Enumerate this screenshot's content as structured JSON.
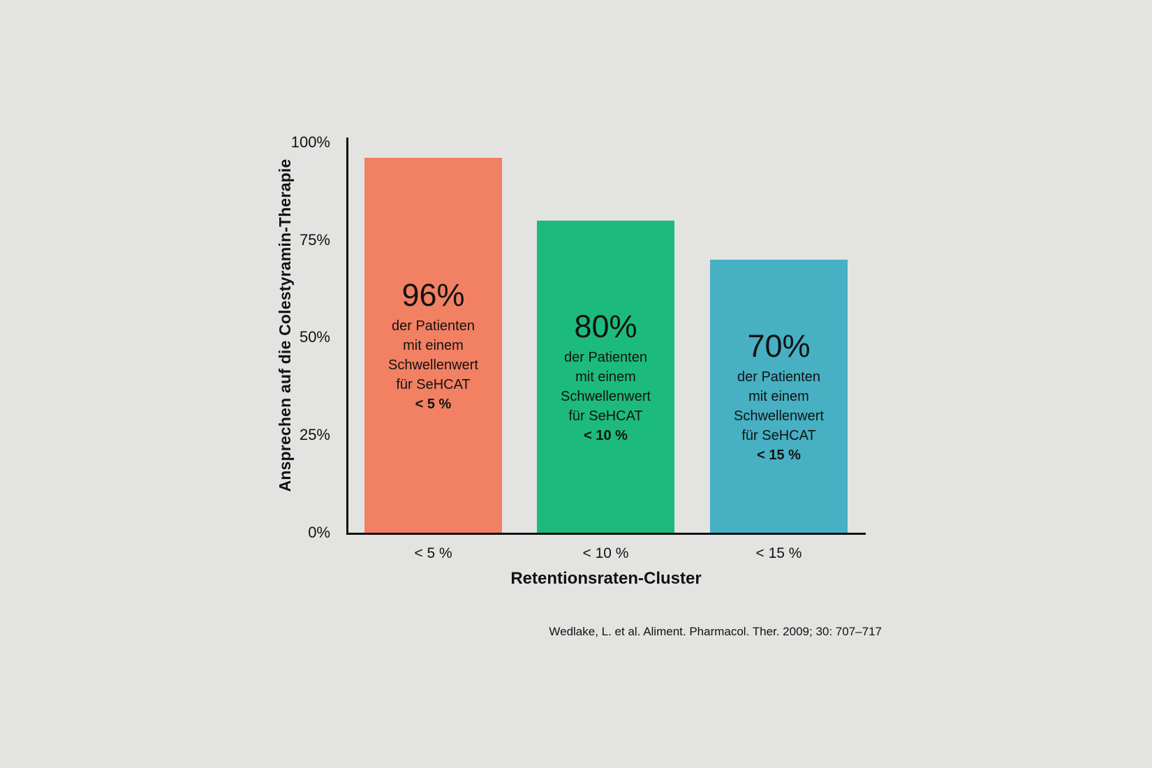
{
  "page": {
    "background": "#E3E3E1",
    "text_color": "#121212"
  },
  "chart_data": {
    "type": "bar",
    "title": "",
    "categories": [
      "< 5 %",
      "< 10 %",
      "< 15 %"
    ],
    "values": [
      96,
      80,
      70
    ],
    "ylim": [
      0,
      100
    ],
    "ytick_labels": [
      "100%",
      "75%",
      "50%",
      "25%",
      "0%"
    ],
    "ylabel": "Ansprechen auf die Colestyramin-Therapie",
    "xlabel": "Retentionsraten-Cluster",
    "grid": false,
    "legend": false,
    "bars": [
      {
        "category": "< 5 %",
        "value": 96,
        "color": "#F28063",
        "pct_label": "96%",
        "body_text": "der Patienten\nmit einem\nSchwellenwert\nfür SeHCAT",
        "threshold_label": "< 5 %"
      },
      {
        "category": "< 10 %",
        "value": 80,
        "color": "#1CBB7D",
        "pct_label": "80%",
        "body_text": "der Patienten\nmit einem\nSchwellenwert\nfür SeHCAT",
        "threshold_label": "< 10 %"
      },
      {
        "category": "< 15 %",
        "value": 70,
        "color": "#47B0C3",
        "pct_label": "70%",
        "body_text": "der Patienten\nmit einem\nSchwellenwert\nfür SeHCAT",
        "threshold_label": "< 15 %"
      }
    ],
    "source": "Wedlake, L. et al. Aliment. Pharmacol. Ther. 2009; 30: 707–717"
  }
}
